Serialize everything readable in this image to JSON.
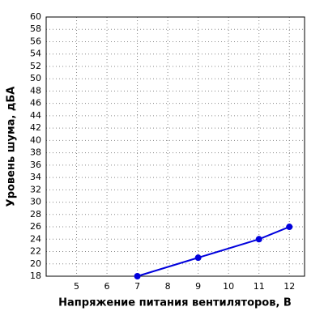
{
  "chart_data": {
    "type": "line",
    "xlabel": "Напряжение питания вентиляторов, В",
    "ylabel": "Уровень шума, дБА",
    "x": [
      7,
      9,
      11,
      12
    ],
    "series": [
      {
        "color": "#0000dd",
        "values": [
          18,
          21,
          24,
          26
        ]
      }
    ],
    "xlim": [
      4,
      12.5
    ],
    "xticks": [
      5,
      6,
      7,
      8,
      9,
      10,
      11,
      12
    ],
    "ylim": [
      18,
      60
    ],
    "yticks": [
      18,
      20,
      22,
      24,
      26,
      28,
      30,
      32,
      34,
      36,
      38,
      40,
      42,
      44,
      46,
      48,
      50,
      52,
      54,
      56,
      58,
      60
    ],
    "grid": true
  }
}
